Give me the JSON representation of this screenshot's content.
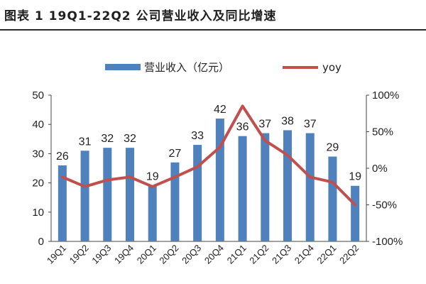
{
  "title": "图表  1 19Q1-22Q2 公司营业收入及同比增速",
  "chart_data": {
    "type": "bar",
    "categories": [
      "19Q1",
      "19Q2",
      "19Q3",
      "19Q4",
      "20Q1",
      "20Q2",
      "20Q3",
      "20Q4",
      "21Q1",
      "21Q2",
      "21Q3",
      "21Q4",
      "22Q1",
      "22Q2"
    ],
    "series": [
      {
        "name": "营业收入（亿元）",
        "type": "bar",
        "axis": "left",
        "color": "#4f81bd",
        "values": [
          26,
          31,
          32,
          32,
          19,
          27,
          33,
          42,
          36,
          37,
          38,
          37,
          29,
          19
        ]
      },
      {
        "name": "yoy",
        "type": "line",
        "axis": "right",
        "color": "#c0504d",
        "values": [
          -12,
          -25,
          -16,
          -12,
          -25,
          -12,
          2,
          29,
          85,
          38,
          18,
          -12,
          -19,
          -50
        ]
      }
    ],
    "ylim_left": [
      0,
      50
    ],
    "yticks_left": [
      "0",
      "10",
      "20",
      "30",
      "40",
      "50"
    ],
    "ylim_right": [
      -100,
      100
    ],
    "yticks_right": [
      "-100%",
      "-50%",
      "0%",
      "50%",
      "100%"
    ],
    "legend_position": "top",
    "grid": false
  }
}
